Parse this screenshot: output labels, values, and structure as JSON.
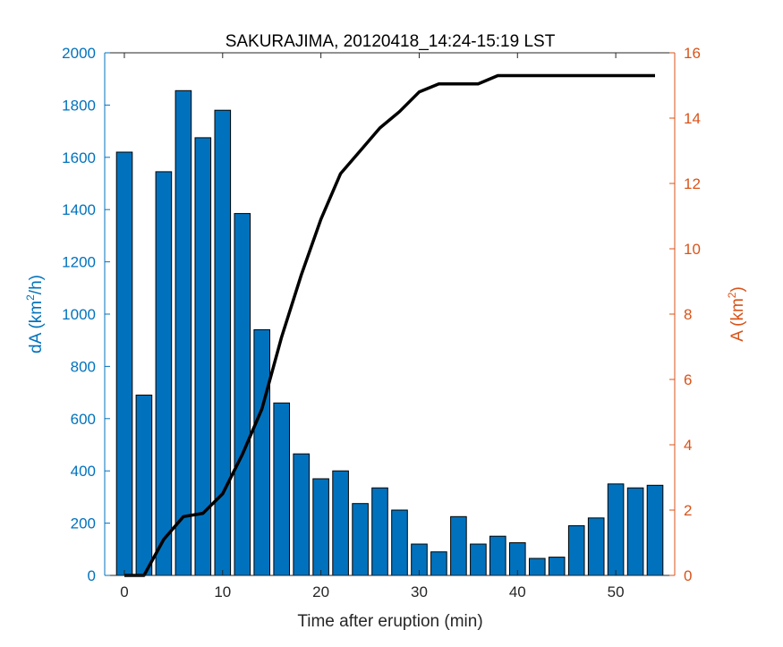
{
  "chart_data": {
    "type": "bar+line",
    "title": "SAKURAJIMA, 20120418_14:24-15:19 LST",
    "xlabel": "Time after eruption (min)",
    "ylabel_left": {
      "base": "dA (km",
      "sup": "2",
      "tail": "/h)"
    },
    "ylabel_right": {
      "base": "A (km",
      "sup": "2",
      "tail": ")"
    },
    "xlim": [
      -2,
      56
    ],
    "ylim_left": [
      0,
      2000
    ],
    "ylim_right": [
      0,
      16
    ],
    "xticks": [
      "0",
      "10",
      "20",
      "30",
      "40",
      "50"
    ],
    "yticks_left": [
      "0",
      "200",
      "400",
      "600",
      "800",
      "1000",
      "1200",
      "1400",
      "1600",
      "1800",
      "2000"
    ],
    "yticks_right": [
      "0",
      "2",
      "4",
      "6",
      "8",
      "10",
      "12",
      "14",
      "16"
    ],
    "grid": false,
    "colors": {
      "left_axis": "#0072BD",
      "right_axis": "#D95319",
      "bars": "#0072BD",
      "line": "#000000"
    },
    "series": [
      {
        "kind": "bar",
        "axis": "left",
        "x": [
          0,
          2,
          4,
          6,
          8,
          10,
          12,
          14,
          16,
          18,
          20,
          22,
          24,
          26,
          28,
          30,
          32,
          34,
          36,
          38,
          40,
          42,
          44,
          46,
          48,
          50,
          52,
          54
        ],
        "values": [
          1620,
          690,
          1545,
          1855,
          1675,
          1780,
          1385,
          940,
          660,
          465,
          370,
          400,
          275,
          335,
          250,
          120,
          90,
          225,
          120,
          150,
          125,
          65,
          70,
          190,
          220,
          350,
          335,
          345
        ]
      },
      {
        "kind": "line",
        "axis": "right",
        "x": [
          0,
          2,
          4,
          6,
          8,
          10,
          12,
          14,
          16,
          18,
          20,
          22,
          24,
          26,
          28,
          30,
          32,
          34,
          36,
          38,
          40,
          42,
          44,
          46,
          48,
          50,
          52,
          54
        ],
        "values": [
          0,
          0,
          1.1,
          1.8,
          1.9,
          2.5,
          3.7,
          5.1,
          7.3,
          9.2,
          10.9,
          12.3,
          13.0,
          13.7,
          14.2,
          14.8,
          15.05,
          15.05,
          15.05,
          15.3,
          15.3,
          15.3,
          15.3,
          15.3,
          15.3,
          15.3,
          15.3,
          15.3
        ]
      }
    ]
  }
}
